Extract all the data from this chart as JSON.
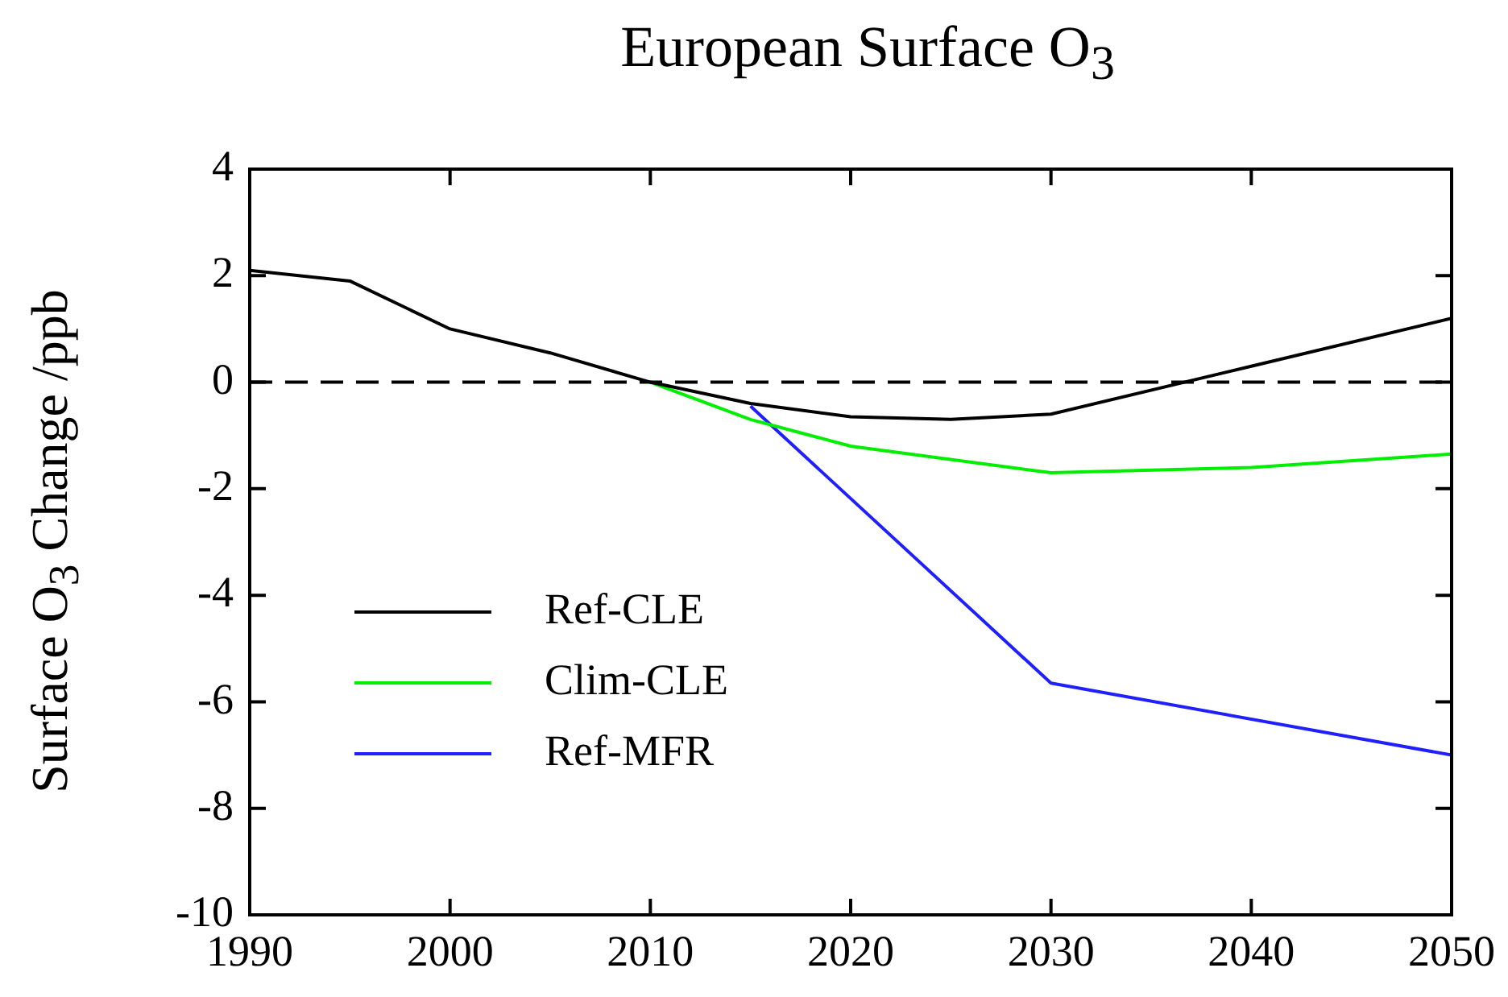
{
  "chart_data": {
    "type": "line",
    "title": "European Surface O$_{3}$",
    "ylabel": "Surface O$_{3}$ Change  /ppb",
    "xlim": [
      1990,
      2050
    ],
    "xticks": [
      1990,
      2000,
      2010,
      2020,
      2030,
      2040,
      2050
    ],
    "ylim": [
      -10,
      4
    ],
    "yticks": [
      -10,
      -8,
      -6,
      -4,
      -2,
      0,
      2,
      4
    ],
    "grid": false,
    "legend": "bottom left",
    "marker": "none",
    "line_style": "solid",
    "ref_lines": [
      {
        "axis": "y",
        "value": 0,
        "line_style": "dashed",
        "color": "#000000"
      }
    ],
    "series": [
      {
        "name": "Ref-CLE",
        "color": "#000000",
        "x": [
          1990,
          1995,
          2000,
          2005,
          2010,
          2015,
          2020,
          2025,
          2030,
          2040,
          2050
        ],
        "values": [
          2.1,
          1.9,
          1.0,
          0.55,
          0,
          -0.4,
          -0.65,
          -0.7,
          -0.6,
          0.3,
          1.2
        ]
      },
      {
        "name": "Clim-CLE",
        "color": "#00ee00",
        "x": [
          2010,
          2015,
          2020,
          2030,
          2040,
          2050
        ],
        "values": [
          0,
          -0.7,
          -1.2,
          -1.7,
          -1.6,
          -1.35
        ]
      },
      {
        "name": "Ref-MFR",
        "color": "#2020ff",
        "x": [
          2015,
          2030,
          2050
        ],
        "values": [
          -0.45,
          -5.65,
          -7.0
        ]
      }
    ]
  }
}
